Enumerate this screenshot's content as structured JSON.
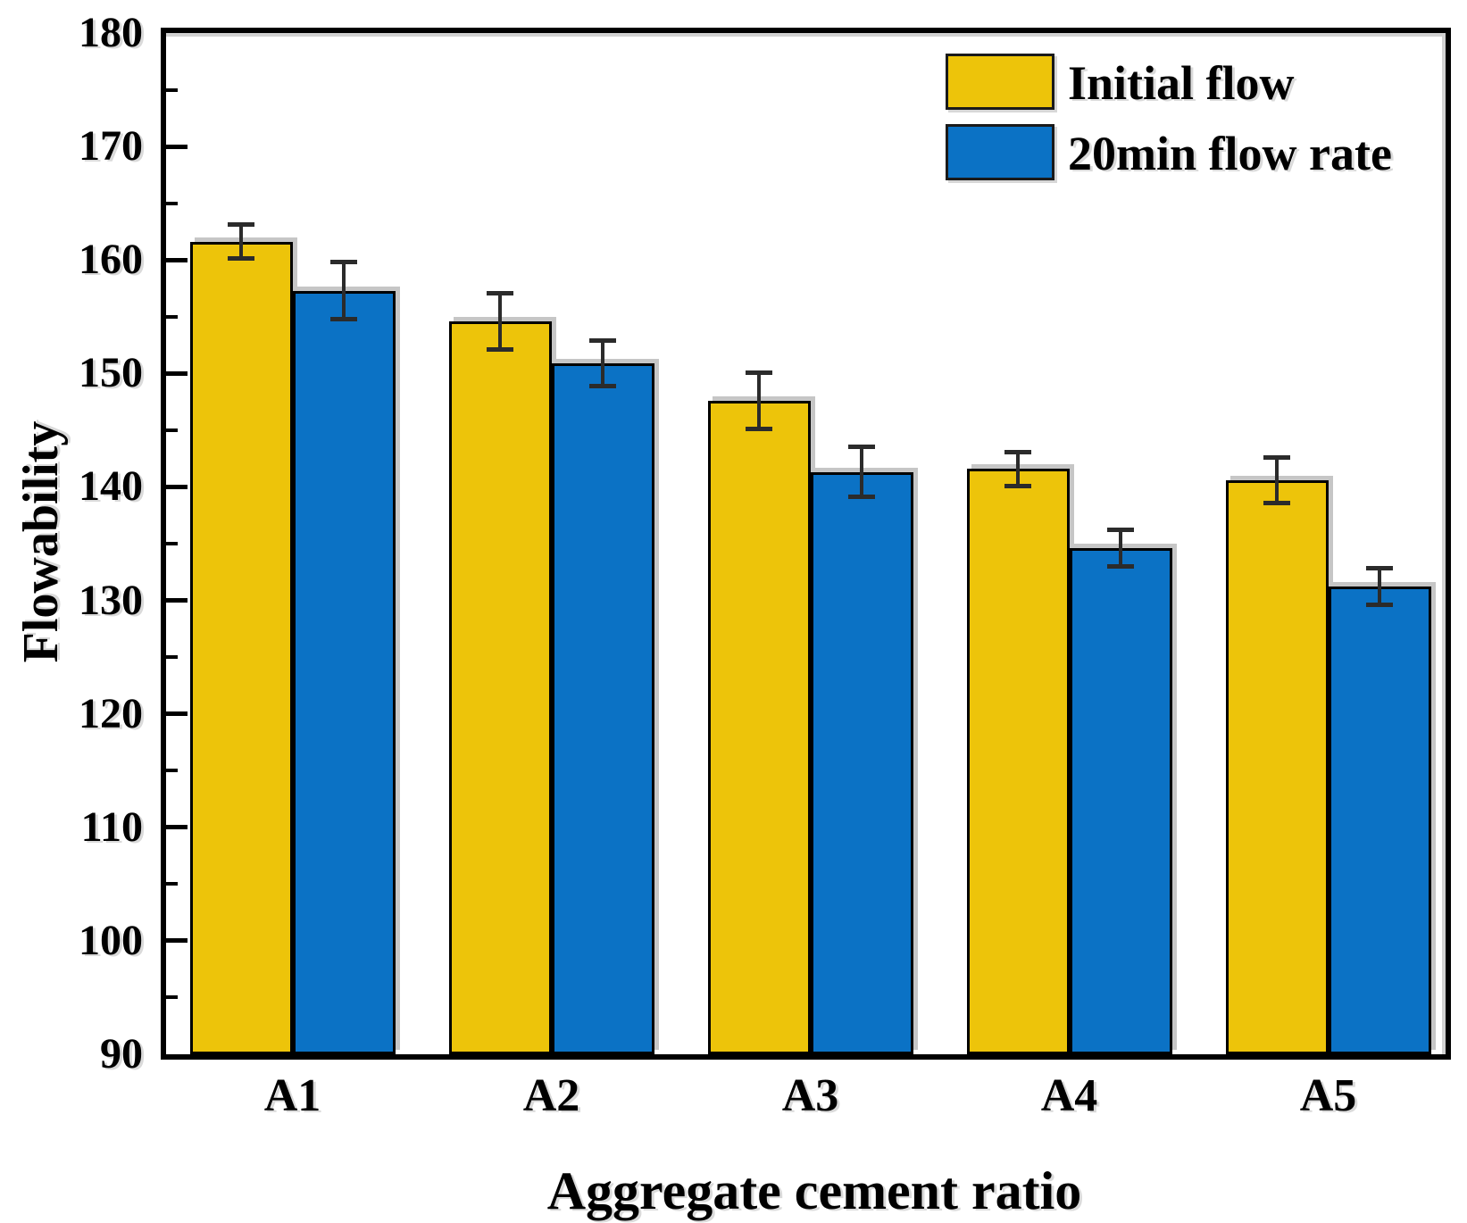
{
  "chart_data": {
    "type": "bar",
    "title": "",
    "xlabel": "Aggregate cement ratio",
    "ylabel": "Flowability",
    "ylim": [
      90,
      180
    ],
    "y_major_step": 10,
    "y_minor_step": 5,
    "categories": [
      "A1",
      "A2",
      "A3",
      "A4",
      "A5"
    ],
    "series": [
      {
        "name": "Initial flow",
        "color": "#EDC40A",
        "values": [
          161.6,
          154.6,
          147.6,
          141.6,
          140.6
        ],
        "errors": [
          1.5,
          2.5,
          2.5,
          1.5,
          2.0
        ]
      },
      {
        "name": "20min flow rate",
        "color": "#0B72C5",
        "values": [
          157.3,
          150.9,
          141.3,
          134.6,
          131.2
        ],
        "errors": [
          2.5,
          2.0,
          2.2,
          1.6,
          1.6
        ]
      }
    ],
    "legend_position": "top-right",
    "grid": false,
    "bar_border_color": "#000000",
    "error_bar_color": "#2b2b2b",
    "axis_color": "#000000"
  }
}
